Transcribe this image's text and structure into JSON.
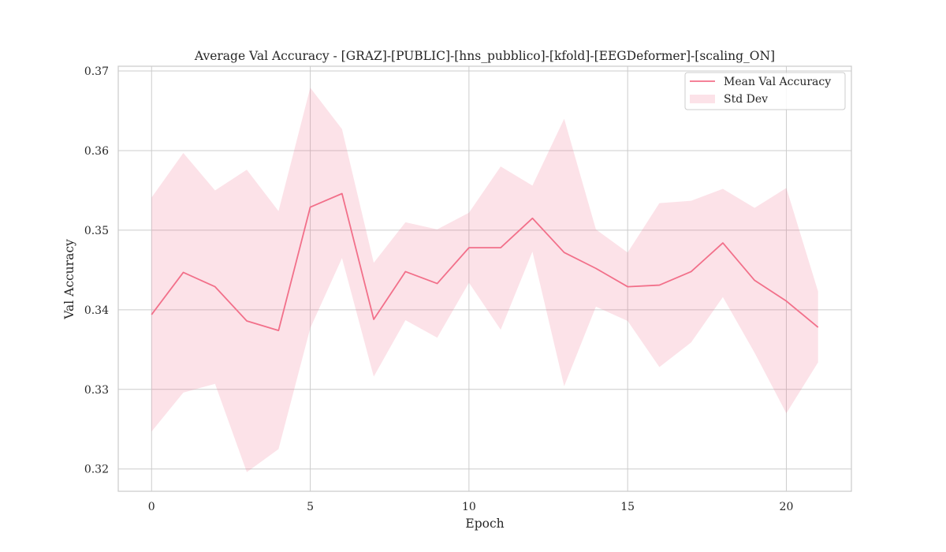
{
  "chart_data": {
    "type": "line",
    "title": "Average Val Accuracy - [GRAZ]-[PUBLIC]-[hns_pubblico]-[kfold]-[EEGDeformer]-[scaling_ON]",
    "xlabel": "Epoch",
    "ylabel": "Val Accuracy",
    "xlim": [
      -1.05,
      22.05
    ],
    "ylim": [
      0.3172,
      0.3706
    ],
    "x_ticks": [
      0,
      5,
      10,
      15,
      20
    ],
    "y_ticks": [
      0.32,
      0.33,
      0.34,
      0.35,
      0.36,
      0.37
    ],
    "grid": true,
    "legend_position": "upper right",
    "x": [
      0,
      1,
      2,
      3,
      4,
      5,
      6,
      7,
      8,
      9,
      10,
      11,
      12,
      13,
      14,
      15,
      16,
      17,
      18,
      19,
      20,
      21
    ],
    "series": [
      {
        "name": "Mean Val Accuracy",
        "kind": "line",
        "color": "#f2708a",
        "values": [
          0.3394,
          0.3447,
          0.3429,
          0.3386,
          0.3374,
          0.3529,
          0.3546,
          0.3388,
          0.3448,
          0.3433,
          0.3478,
          0.3478,
          0.3515,
          0.3472,
          0.3452,
          0.3429,
          0.3431,
          0.3448,
          0.3484,
          0.3437,
          0.3411,
          0.3378
        ]
      },
      {
        "name": "Std Dev",
        "kind": "band",
        "color": "#f2708a",
        "opacity": 0.2,
        "upper": [
          0.3541,
          0.3597,
          0.355,
          0.3576,
          0.3524,
          0.3679,
          0.3627,
          0.3459,
          0.351,
          0.3501,
          0.3522,
          0.358,
          0.3556,
          0.364,
          0.3501,
          0.3472,
          0.3534,
          0.3537,
          0.3552,
          0.3528,
          0.3553,
          0.3423
        ],
        "lower": [
          0.3247,
          0.3296,
          0.3307,
          0.3196,
          0.3225,
          0.3377,
          0.3465,
          0.3316,
          0.3387,
          0.3365,
          0.3434,
          0.3375,
          0.3473,
          0.3304,
          0.3404,
          0.3386,
          0.3328,
          0.3359,
          0.3416,
          0.3346,
          0.327,
          0.3334
        ]
      }
    ]
  }
}
